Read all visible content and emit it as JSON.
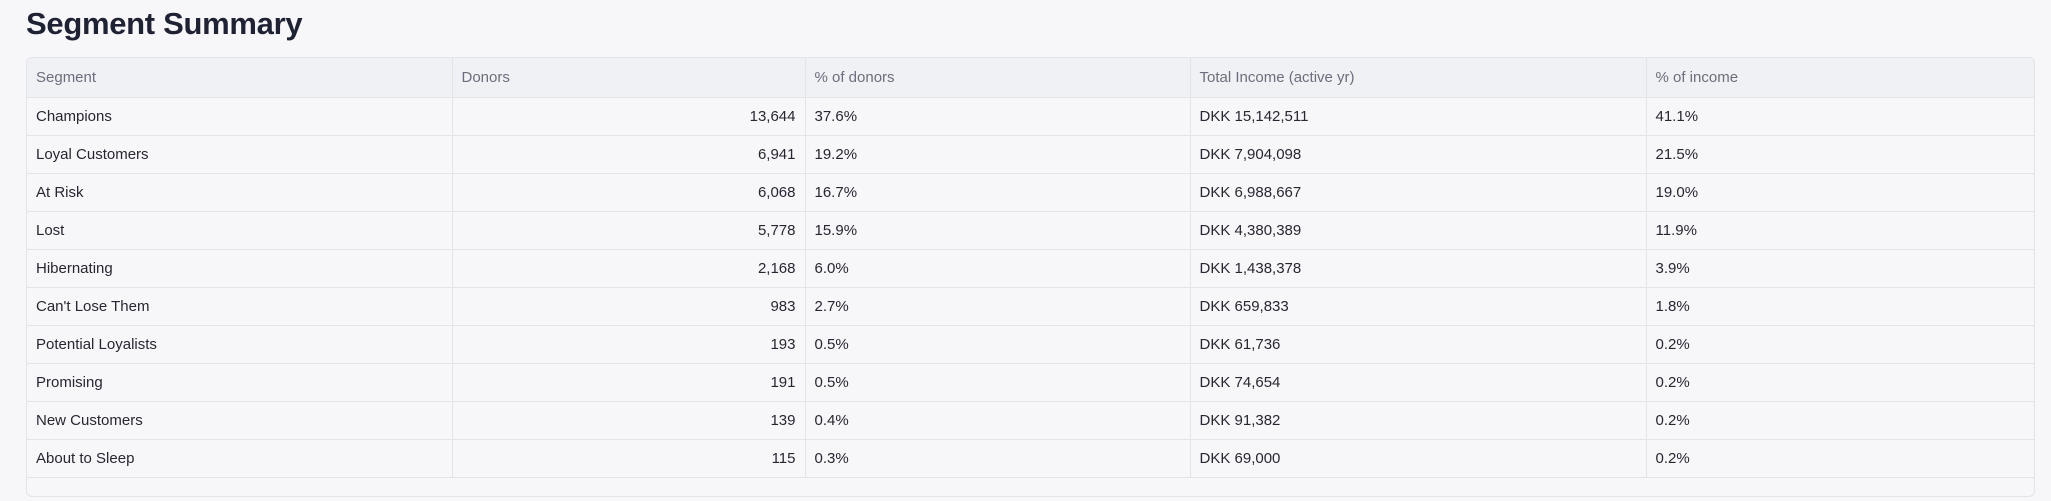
{
  "page": {
    "title": "Segment Summary"
  },
  "table": {
    "columns": [
      "Segment",
      "Donors",
      "% of donors",
      "Total Income (active yr)",
      "% of income"
    ],
    "rows": [
      {
        "segment": "Champions",
        "donors": "13,644",
        "pct_donors": "37.6%",
        "income": "DKK 15,142,511",
        "pct_income": "41.1%"
      },
      {
        "segment": "Loyal Customers",
        "donors": "6,941",
        "pct_donors": "19.2%",
        "income": "DKK 7,904,098",
        "pct_income": "21.5%"
      },
      {
        "segment": "At Risk",
        "donors": "6,068",
        "pct_donors": "16.7%",
        "income": "DKK 6,988,667",
        "pct_income": "19.0%"
      },
      {
        "segment": "Lost",
        "donors": "5,778",
        "pct_donors": "15.9%",
        "income": "DKK 4,380,389",
        "pct_income": "11.9%"
      },
      {
        "segment": "Hibernating",
        "donors": "2,168",
        "pct_donors": "6.0%",
        "income": "DKK 1,438,378",
        "pct_income": "3.9%"
      },
      {
        "segment": "Can't Lose Them",
        "donors": "983",
        "pct_donors": "2.7%",
        "income": "DKK 659,833",
        "pct_income": "1.8%"
      },
      {
        "segment": "Potential Loyalists",
        "donors": "193",
        "pct_donors": "0.5%",
        "income": "DKK 61,736",
        "pct_income": "0.2%"
      },
      {
        "segment": "Promising",
        "donors": "191",
        "pct_donors": "0.5%",
        "income": "DKK 74,654",
        "pct_income": "0.2%"
      },
      {
        "segment": "New Customers",
        "donors": "139",
        "pct_donors": "0.4%",
        "income": "DKK 91,382",
        "pct_income": "0.2%"
      },
      {
        "segment": "About to Sleep",
        "donors": "115",
        "pct_donors": "0.3%",
        "income": "DKK 69,000",
        "pct_income": "0.2%"
      }
    ]
  }
}
